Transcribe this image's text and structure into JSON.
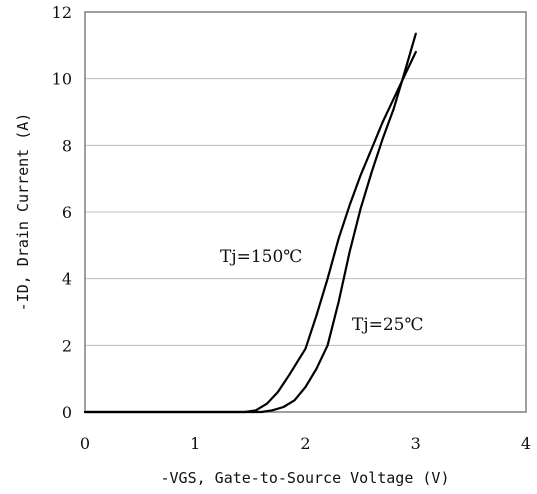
{
  "chart_data": {
    "type": "line",
    "xlabel": "-VGS, Gate-to-Source Voltage (V)",
    "ylabel": "-ID, Drain Current (A)",
    "xlim": [
      0,
      4
    ],
    "ylim": [
      0,
      12
    ],
    "xticks": [
      "0",
      "1",
      "2",
      "3",
      "4"
    ],
    "yticks": [
      "0",
      "2",
      "4",
      "6",
      "8",
      "10",
      "12"
    ],
    "grid": "horizontal",
    "series": [
      {
        "name": "Tj=150℃",
        "points": [
          [
            0,
            0
          ],
          [
            1.45,
            0
          ],
          [
            1.55,
            0.05
          ],
          [
            1.65,
            0.25
          ],
          [
            1.75,
            0.6
          ],
          [
            1.85,
            1.1
          ],
          [
            2.0,
            1.9
          ],
          [
            2.1,
            2.9
          ],
          [
            2.2,
            4.0
          ],
          [
            2.3,
            5.2
          ],
          [
            2.4,
            6.2
          ],
          [
            2.5,
            7.1
          ],
          [
            2.6,
            7.9
          ],
          [
            2.7,
            8.7
          ],
          [
            2.8,
            9.4
          ],
          [
            2.9,
            10.1
          ],
          [
            3.0,
            10.8
          ]
        ]
      },
      {
        "name": "Tj=25℃",
        "points": [
          [
            0,
            0
          ],
          [
            1.6,
            0
          ],
          [
            1.7,
            0.05
          ],
          [
            1.8,
            0.15
          ],
          [
            1.9,
            0.35
          ],
          [
            2.0,
            0.75
          ],
          [
            2.1,
            1.3
          ],
          [
            2.2,
            2.0
          ],
          [
            2.3,
            3.3
          ],
          [
            2.4,
            4.8
          ],
          [
            2.5,
            6.1
          ],
          [
            2.6,
            7.2
          ],
          [
            2.7,
            8.2
          ],
          [
            2.8,
            9.1
          ],
          [
            2.9,
            10.2
          ],
          [
            3.0,
            11.35
          ]
        ]
      }
    ],
    "annotations": [
      {
        "text": "Tj=150℃",
        "series": 0
      },
      {
        "text": "Tj=25℃",
        "series": 1
      }
    ]
  }
}
